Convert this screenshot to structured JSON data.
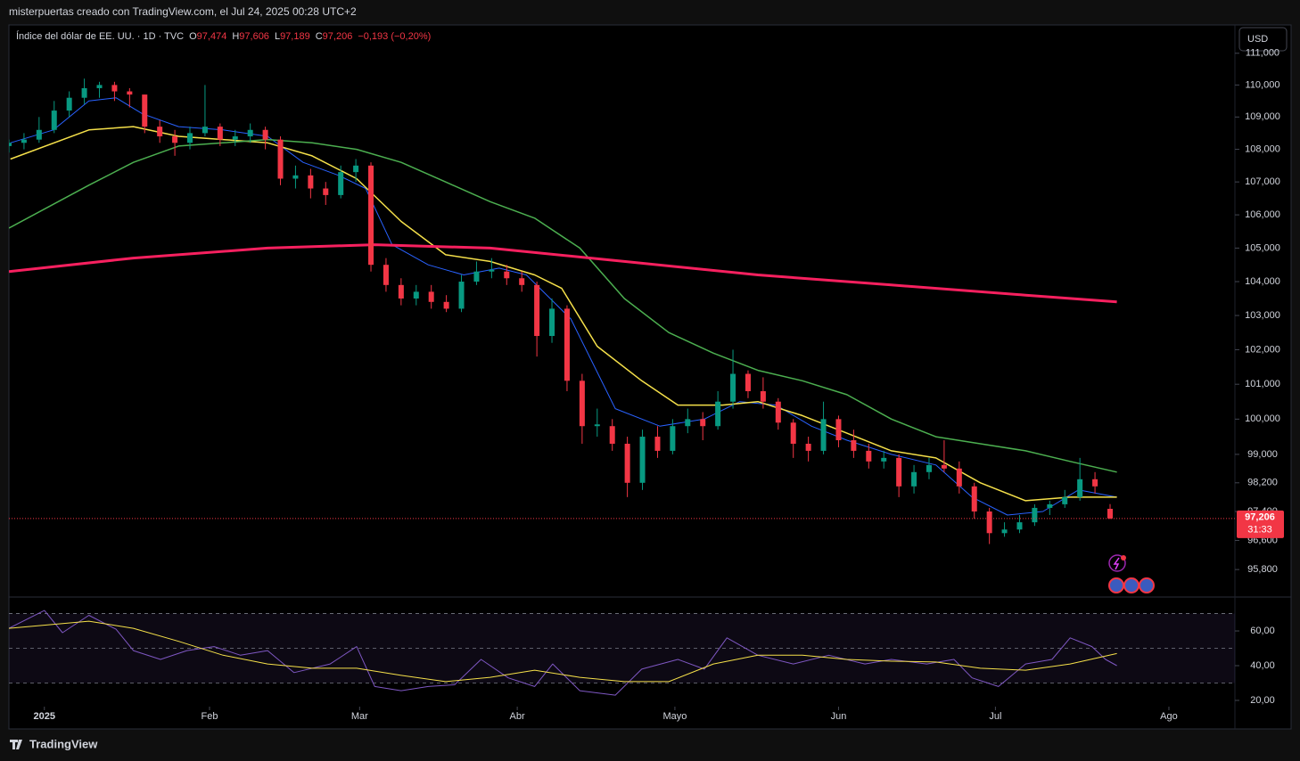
{
  "header": {
    "caption": "misterpuertas creado con TradingView.com, el Jul 24, 2025 00:28 UTC+2",
    "symbol": "Índice del dólar de EE. UU. · 1D · TVC",
    "ohlc": [
      {
        "key": "O",
        "value": "97,474"
      },
      {
        "key": "H",
        "value": "97,606"
      },
      {
        "key": "L",
        "value": "97,189"
      },
      {
        "key": "C",
        "value": "97,206"
      }
    ],
    "change": "−0,193 (−0,20%)"
  },
  "currency": "USD",
  "last_price": {
    "value": 97.206,
    "label": "97,206",
    "countdown": "31:33"
  },
  "footer": "TradingView",
  "chart_data": [
    {
      "type": "candlestick",
      "log_scale": true,
      "grid": false,
      "up_color": "#089981",
      "down_color": "#f23645",
      "xlim": [
        0,
        170
      ],
      "ylim": [
        95.1,
        111.9
      ],
      "yticks": [
        {
          "value": 111,
          "label": "111,000"
        },
        {
          "value": 110,
          "label": "110,000"
        },
        {
          "value": 109,
          "label": "109,000"
        },
        {
          "value": 108,
          "label": "108,000"
        },
        {
          "value": 107,
          "label": "107,000"
        },
        {
          "value": 106,
          "label": "106,000"
        },
        {
          "value": 105,
          "label": "105,000"
        },
        {
          "value": 104,
          "label": "104,000"
        },
        {
          "value": 103,
          "label": "103,000"
        },
        {
          "value": 102,
          "label": "102,000"
        },
        {
          "value": 101,
          "label": "101,000"
        },
        {
          "value": 100,
          "label": "100,000"
        },
        {
          "value": 99,
          "label": "99,000"
        },
        {
          "value": 98.2,
          "label": "98,200"
        },
        {
          "value": 97.4,
          "label": "97,400"
        },
        {
          "value": 96.6,
          "label": "96,600"
        },
        {
          "value": 95.8,
          "label": "95,800"
        }
      ],
      "x": [
        0,
        2,
        4,
        6,
        8,
        10,
        12,
        14,
        16,
        18,
        20,
        22,
        24,
        26,
        28,
        30,
        32,
        34,
        36,
        38,
        40,
        42,
        44,
        46,
        48,
        50,
        52,
        54,
        56,
        58,
        60,
        62,
        64,
        66,
        68,
        70,
        72,
        74,
        76,
        78,
        80,
        82,
        84,
        86,
        88,
        90,
        92,
        94,
        96,
        98,
        100,
        102,
        104,
        106,
        108,
        110,
        112,
        114,
        116,
        118,
        120,
        122,
        124,
        126,
        128,
        130,
        132,
        134,
        136,
        138,
        140,
        142,
        144,
        146
      ],
      "ohlc": [
        [
          108.1,
          108.3,
          107.9,
          108.2
        ],
        [
          108.2,
          108.5,
          108.0,
          108.3
        ],
        [
          108.3,
          109.0,
          108.2,
          108.6
        ],
        [
          108.6,
          109.5,
          108.5,
          109.2
        ],
        [
          109.2,
          109.8,
          109.0,
          109.6
        ],
        [
          109.6,
          110.2,
          109.4,
          109.9
        ],
        [
          109.9,
          110.1,
          109.6,
          110.0
        ],
        [
          110.0,
          110.1,
          109.5,
          109.8
        ],
        [
          109.8,
          109.9,
          109.3,
          109.7
        ],
        [
          109.7,
          109.7,
          108.5,
          108.7
        ],
        [
          108.7,
          108.9,
          108.2,
          108.4
        ],
        [
          108.4,
          108.6,
          107.8,
          108.2
        ],
        [
          108.2,
          108.7,
          108.0,
          108.5
        ],
        [
          108.5,
          110.0,
          108.4,
          108.7
        ],
        [
          108.7,
          108.8,
          108.1,
          108.3
        ],
        [
          108.3,
          108.6,
          108.1,
          108.4
        ],
        [
          108.4,
          108.8,
          108.2,
          108.6
        ],
        [
          108.6,
          108.7,
          108.0,
          108.3
        ],
        [
          108.3,
          108.4,
          106.9,
          107.1
        ],
        [
          107.1,
          107.5,
          106.8,
          107.2
        ],
        [
          107.2,
          107.4,
          106.5,
          106.8
        ],
        [
          106.8,
          107.0,
          106.3,
          106.6
        ],
        [
          106.6,
          107.5,
          106.5,
          107.3
        ],
        [
          107.3,
          107.7,
          107.0,
          107.5
        ],
        [
          107.5,
          107.6,
          104.3,
          104.5
        ],
        [
          104.5,
          104.7,
          103.7,
          103.9
        ],
        [
          103.9,
          104.1,
          103.3,
          103.5
        ],
        [
          103.5,
          103.9,
          103.3,
          103.7
        ],
        [
          103.7,
          103.9,
          103.2,
          103.4
        ],
        [
          103.4,
          103.6,
          103.1,
          103.2
        ],
        [
          103.2,
          104.2,
          103.1,
          104.0
        ],
        [
          104.0,
          104.6,
          103.9,
          104.3
        ],
        [
          104.3,
          104.7,
          104.1,
          104.35
        ],
        [
          104.3,
          104.5,
          103.9,
          104.1
        ],
        [
          104.1,
          104.3,
          103.7,
          103.9
        ],
        [
          103.9,
          104.0,
          101.8,
          102.4
        ],
        [
          102.4,
          103.5,
          102.2,
          103.2
        ],
        [
          103.2,
          103.3,
          100.8,
          101.1
        ],
        [
          101.1,
          101.3,
          99.3,
          99.8
        ],
        [
          99.8,
          100.3,
          99.5,
          99.85
        ],
        [
          99.8,
          100.0,
          99.1,
          99.3
        ],
        [
          99.3,
          99.5,
          97.8,
          98.2
        ],
        [
          98.2,
          99.7,
          98.0,
          99.5
        ],
        [
          99.5,
          99.8,
          98.9,
          99.1
        ],
        [
          99.1,
          100.0,
          99.0,
          99.8
        ],
        [
          99.8,
          100.3,
          99.6,
          100.0
        ],
        [
          100.0,
          100.2,
          99.4,
          99.8
        ],
        [
          99.8,
          100.8,
          99.7,
          100.5
        ],
        [
          100.5,
          102.0,
          100.3,
          101.3
        ],
        [
          101.3,
          101.4,
          100.6,
          100.8
        ],
        [
          100.8,
          101.2,
          100.3,
          100.5
        ],
        [
          100.5,
          100.6,
          99.7,
          99.9
        ],
        [
          99.9,
          100.0,
          98.9,
          99.3
        ],
        [
          99.3,
          99.5,
          98.8,
          99.1
        ],
        [
          99.1,
          100.5,
          99.0,
          100.0
        ],
        [
          100.0,
          100.1,
          99.2,
          99.4
        ],
        [
          99.4,
          99.7,
          98.9,
          99.1
        ],
        [
          99.1,
          99.3,
          98.6,
          98.8
        ],
        [
          98.8,
          99.1,
          98.6,
          98.9
        ],
        [
          98.9,
          99.0,
          97.8,
          98.1
        ],
        [
          98.1,
          98.7,
          97.9,
          98.5
        ],
        [
          98.5,
          98.9,
          98.3,
          98.7
        ],
        [
          98.7,
          99.4,
          98.5,
          98.6
        ],
        [
          98.6,
          98.8,
          97.9,
          98.1
        ],
        [
          98.1,
          98.2,
          97.2,
          97.4
        ],
        [
          97.4,
          97.5,
          96.5,
          96.8
        ],
        [
          96.8,
          97.1,
          96.7,
          96.9
        ],
        [
          96.9,
          97.3,
          96.8,
          97.1
        ],
        [
          97.1,
          97.6,
          97.0,
          97.5
        ],
        [
          97.5,
          97.7,
          97.3,
          97.6
        ],
        [
          97.6,
          98.0,
          97.5,
          97.8
        ],
        [
          97.8,
          98.9,
          97.7,
          98.3
        ],
        [
          98.3,
          98.5,
          97.9,
          98.1
        ],
        [
          97.474,
          97.606,
          97.189,
          97.206
        ]
      ],
      "series": [
        {
          "color": "#2962ff",
          "width": 1,
          "x": [
            0.2,
            5.9,
            10.6,
            14.2,
            17.7,
            22.5,
            28.4,
            34.3,
            39.0,
            43.7,
            47.3,
            50.8,
            55.6,
            60.3,
            65.0,
            68.6,
            74.5,
            80.4,
            86.3,
            92.2,
            96.9,
            101.7,
            106.4,
            111.1,
            117.0,
            122.9,
            127.7,
            132.4,
            137.1,
            141.8,
            146.9
          ],
          "values": [
            108.2,
            108.6,
            109.5,
            109.6,
            109.1,
            108.7,
            108.6,
            108.4,
            107.6,
            107.2,
            106.8,
            105.1,
            104.5,
            104.2,
            104.4,
            104.2,
            102.9,
            100.3,
            99.8,
            100.0,
            100.5,
            100.4,
            99.8,
            99.4,
            99.0,
            98.7,
            97.8,
            97.3,
            97.4,
            98.0,
            97.8
          ]
        },
        {
          "color": "#f5e04a",
          "width": 1.5,
          "x": [
            0.2,
            10.6,
            16.5,
            22.5,
            28.4,
            34.3,
            40.2,
            46.1,
            52.0,
            57.9,
            63.8,
            69.7,
            73.3,
            78.0,
            83.9,
            88.7,
            94.6,
            99.3,
            105.2,
            111.1,
            117.0,
            122.9,
            128.8,
            134.8,
            140.7,
            146.9
          ],
          "values": [
            107.7,
            108.6,
            108.7,
            108.4,
            108.3,
            108.2,
            107.8,
            107.1,
            105.8,
            104.8,
            104.6,
            104.2,
            103.8,
            102.1,
            101.1,
            100.4,
            100.4,
            100.5,
            100.1,
            99.6,
            99.1,
            98.9,
            98.2,
            97.7,
            97.8,
            97.8
          ]
        },
        {
          "color": "#4caf50",
          "width": 1.5,
          "x": [
            0,
            10.6,
            16.5,
            22.5,
            28.4,
            34.3,
            40.2,
            46.1,
            52.0,
            57.9,
            63.8,
            69.7,
            75.7,
            81.6,
            87.5,
            93.4,
            99.3,
            105.2,
            111.1,
            117.0,
            122.9,
            128.8,
            134.8,
            140.7,
            146.9
          ],
          "values": [
            105.6,
            106.9,
            107.6,
            108.1,
            108.2,
            108.3,
            108.2,
            108.0,
            107.6,
            107.0,
            106.4,
            105.9,
            105.0,
            103.5,
            102.5,
            101.9,
            101.4,
            101.1,
            100.7,
            100.0,
            99.5,
            99.3,
            99.1,
            98.8,
            98.5
          ]
        },
        {
          "color": "#f7205f",
          "width": 3,
          "x": [
            0,
            16.5,
            34.3,
            48.5,
            63.8,
            81.6,
            99.3,
            117.0,
            134.8,
            146.9
          ],
          "values": [
            104.3,
            104.7,
            105.0,
            105.1,
            105.0,
            104.6,
            104.2,
            103.9,
            103.6,
            103.4
          ]
        }
      ]
    },
    {
      "type": "line",
      "grid": false,
      "xlim": [
        0,
        170
      ],
      "ylim": [
        16.4,
        78.5
      ],
      "yticks": [
        {
          "value": 60,
          "label": "60,00"
        },
        {
          "value": 40,
          "label": "40,00"
        },
        {
          "value": 20,
          "label": "20,00"
        }
      ],
      "bands": [
        70,
        50,
        30
      ],
      "xticks": [
        {
          "value": 4.7,
          "label": "2025"
        },
        {
          "value": 26.6,
          "label": "Feb"
        },
        {
          "value": 46.5,
          "label": "Mar"
        },
        {
          "value": 67.4,
          "label": "Abr"
        },
        {
          "value": 88.3,
          "label": "Mayo"
        },
        {
          "value": 110.0,
          "label": "Jun"
        },
        {
          "value": 130.8,
          "label": "Jul"
        },
        {
          "value": 153.8,
          "label": "Ago"
        }
      ],
      "series": [
        {
          "color": "#7e57c2",
          "width": 1,
          "x": [
            0,
            4.7,
            7.1,
            10.6,
            14.2,
            16.5,
            20.1,
            23.6,
            27.2,
            30.7,
            34.3,
            37.8,
            42.6,
            46.1,
            48.5,
            52.0,
            55.6,
            59.1,
            62.6,
            66.2,
            69.7,
            72.1,
            75.7,
            80.4,
            83.9,
            88.7,
            92.2,
            95.2,
            99.3,
            104.0,
            108.7,
            113.5,
            117.0,
            121.7,
            125.3,
            127.7,
            131.2,
            134.8,
            138.3,
            140.7,
            143.6,
            145.4,
            146.9
          ],
          "values": [
            61.5,
            71.8,
            59,
            69,
            61,
            48.7,
            43.6,
            48.7,
            51,
            46,
            48.7,
            36,
            41,
            51,
            28,
            25.6,
            28,
            29,
            43.6,
            33,
            28,
            41,
            25.6,
            23,
            38,
            43.6,
            38,
            56,
            46,
            41,
            46,
            41,
            43.6,
            41,
            43.6,
            33,
            28,
            41,
            43.6,
            56,
            51,
            43.6,
            40
          ]
        },
        {
          "color": "#f5e04a",
          "width": 1,
          "x": [
            0,
            10.6,
            16.5,
            22.5,
            28.4,
            34.3,
            40.2,
            46.1,
            52.0,
            57.9,
            63.8,
            69.7,
            75.7,
            81.6,
            87.5,
            93.4,
            99.3,
            105.2,
            111.1,
            117.0,
            122.9,
            128.8,
            134.8,
            140.7,
            146.9
          ],
          "values": [
            61.5,
            65.6,
            61.5,
            54,
            46,
            41,
            38.5,
            38.5,
            34.4,
            30.8,
            33.3,
            37.4,
            33.3,
            30.8,
            30.8,
            41,
            46,
            46,
            43.6,
            42.6,
            42.1,
            38.5,
            37.4,
            41,
            47
          ]
        }
      ]
    }
  ]
}
